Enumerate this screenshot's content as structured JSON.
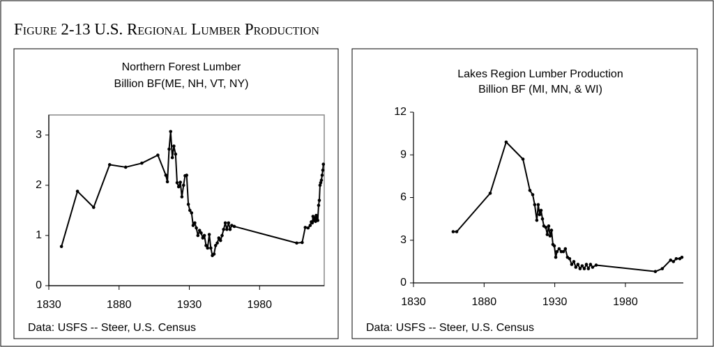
{
  "title": "Figure 2-13 U.S. Regional Lumber Production",
  "chart_data": [
    {
      "type": "line",
      "title": "Northern Forest Lumber",
      "subtitle": "Billion BF(ME, NH, VT, NY)",
      "annotation": "Data: USFS -- Steer, U.S. Census",
      "plot_frame": true,
      "color": "#000000",
      "xlim": [
        1830,
        2026
      ],
      "xticks": [
        1830,
        1880,
        1930,
        1980
      ],
      "ylim": [
        0,
        3.4
      ],
      "yticks": [
        0,
        1,
        2,
        3
      ],
      "x": [
        1839,
        1850.4,
        1861.9,
        1873.3,
        1884.7,
        1896.2,
        1907.6,
        1913.3,
        1914.4,
        1915.6,
        1916.7,
        1917.9,
        1919.0,
        1920.2,
        1921.3,
        1922.4,
        1923.6,
        1924.7,
        1925.9,
        1927.0,
        1928.1,
        1929.3,
        1930.4,
        1931.6,
        1932.7,
        1933.9,
        1935.0,
        1936.1,
        1937.3,
        1938.4,
        1939.6,
        1940.7,
        1941.9,
        1943.0,
        1944.2,
        1945.3,
        1946.4,
        1947.6,
        1948.7,
        1949.9,
        1951.0,
        1952.2,
        1953.3,
        1954.4,
        1955.6,
        1956.7,
        1957.9,
        1959.0,
        1960.2,
        1962.0,
        2006.4,
        2010.3,
        2012.5,
        2014.5,
        2016.0,
        2016.8,
        2017.5,
        2018.0,
        2018.6,
        2019.2,
        2019.8,
        2020.3,
        2020.9,
        2021.4,
        2022.0,
        2022.5,
        2023.0,
        2023.5,
        2024.0,
        2024.5,
        2025.0,
        2025.4
      ],
      "values": [
        0.78,
        1.88,
        1.56,
        2.41,
        2.36,
        2.44,
        2.6,
        2.2,
        2.07,
        2.72,
        3.07,
        2.55,
        2.78,
        2.62,
        2.05,
        1.97,
        2.06,
        1.77,
        2.0,
        2.19,
        2.2,
        1.62,
        1.5,
        1.45,
        1.2,
        1.25,
        1.15,
        1.0,
        1.1,
        1.05,
        0.95,
        1.0,
        0.8,
        0.75,
        1.02,
        0.75,
        0.6,
        0.63,
        0.8,
        0.85,
        0.95,
        0.9,
        1.0,
        1.12,
        1.25,
        1.12,
        1.25,
        1.12,
        1.2,
        1.18,
        0.85,
        0.86,
        1.16,
        1.15,
        1.2,
        1.27,
        1.25,
        1.38,
        1.3,
        1.35,
        1.28,
        1.4,
        1.32,
        1.3,
        1.6,
        1.7,
        2.0,
        2.05,
        2.1,
        2.2,
        2.3,
        2.42
      ]
    },
    {
      "type": "line",
      "title": "Lakes Region Lumber Production",
      "subtitle": "Billion BF (MI, MN, & WI)",
      "annotation": "Data: USFS -- Steer, U.S. Census",
      "plot_frame": false,
      "color": "#000000",
      "xlim": [
        1830,
        2021
      ],
      "xticks": [
        1830,
        1880,
        1930,
        1980
      ],
      "ylim": [
        0,
        12
      ],
      "yticks": [
        0,
        3,
        6,
        9,
        12
      ],
      "x": [
        1858.1,
        1860.6,
        1884.3,
        1895.6,
        1907.5,
        1912.4,
        1914.4,
        1915.8,
        1917.3,
        1918.3,
        1919.3,
        1920.3,
        1921.3,
        1922.3,
        1923.7,
        1924.7,
        1925.7,
        1926.7,
        1927.7,
        1928.7,
        1929.7,
        1930.7,
        1931.6,
        1933.1,
        1934.6,
        1936.1,
        1937.5,
        1939.0,
        1940.5,
        1942.0,
        1943.5,
        1944.9,
        1946.4,
        1947.9,
        1949.4,
        1950.9,
        1952.4,
        1953.8,
        1955.3,
        1956.8,
        1959.3,
        2001.2,
        2006.1,
        2012.0,
        2014.0,
        2016.0,
        2018.5,
        2020.0
      ],
      "values": [
        3.6,
        3.6,
        6.3,
        9.9,
        8.7,
        6.5,
        6.2,
        5.5,
        4.4,
        5.5,
        4.8,
        5.1,
        4.5,
        4.0,
        3.9,
        3.4,
        4.0,
        3.3,
        3.7,
        2.7,
        2.6,
        1.8,
        2.2,
        2.4,
        2.2,
        2.2,
        2.4,
        1.8,
        1.7,
        1.3,
        1.5,
        1.1,
        1.3,
        1.0,
        1.2,
        1.0,
        1.3,
        1.0,
        1.3,
        1.1,
        1.25,
        0.8,
        1.0,
        1.6,
        1.5,
        1.7,
        1.7,
        1.8
      ]
    }
  ]
}
